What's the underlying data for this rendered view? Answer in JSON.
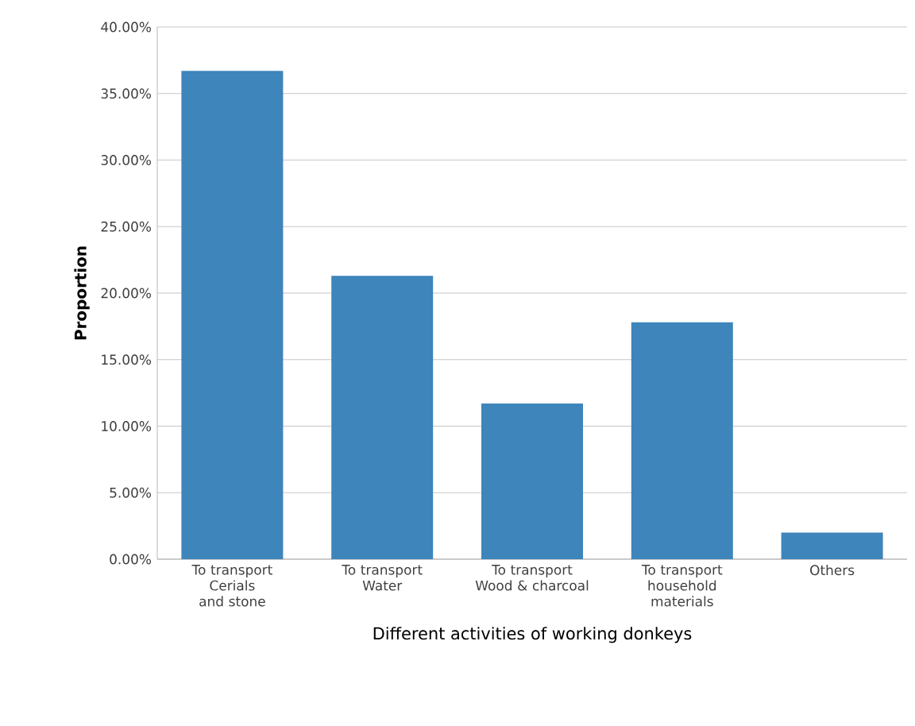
{
  "chart_data": {
    "type": "bar",
    "xlabel": "Different activities of working donkeys",
    "ylabel": "Proportion",
    "categories": [
      "To transport Cerials and stone",
      "To transport Water",
      "To transport Wood & charcoal",
      "To transport household materials",
      "Others"
    ],
    "values": [
      36.7,
      21.3,
      11.7,
      17.8,
      2.0
    ],
    "color": "#3d85bb",
    "ylim": [
      0,
      40
    ],
    "yticks": [
      {
        "value": 0,
        "label": "0.00%"
      },
      {
        "value": 5,
        "label": "5.00%"
      },
      {
        "value": 10,
        "label": "10.00%"
      },
      {
        "value": 15,
        "label": "15.00%"
      },
      {
        "value": 20,
        "label": "20.00%"
      },
      {
        "value": 25,
        "label": "25.00%"
      },
      {
        "value": 30,
        "label": "30.00%"
      },
      {
        "value": 35,
        "label": "35.00%"
      },
      {
        "value": 40,
        "label": "40.00%"
      }
    ],
    "grid": "y"
  }
}
